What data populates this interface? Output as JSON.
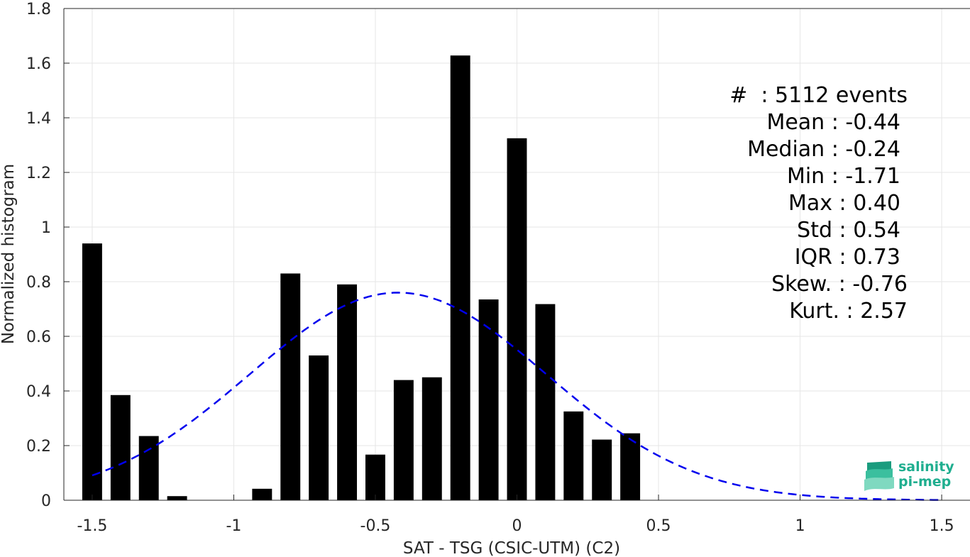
{
  "chart_data": {
    "type": "bar",
    "xlabel": "SAT - TSG (CSIC-UTM) (C2)",
    "ylabel": "Normalized histogram",
    "xlim": [
      -1.6,
      1.6
    ],
    "ylim": [
      0,
      1.8
    ],
    "xticks": [
      "-1.5",
      "-1",
      "-0.5",
      "0",
      "0.5",
      "1",
      "1.5"
    ],
    "xtick_values": [
      -1.5,
      -1,
      -0.5,
      0,
      0.5,
      1,
      1.5
    ],
    "yticks": [
      "0",
      "0.2",
      "0.4",
      "0.6",
      "0.8",
      "1",
      "1.2",
      "1.4",
      "1.6",
      "1.8"
    ],
    "ytick_values": [
      0,
      0.2,
      0.4,
      0.6,
      0.8,
      1,
      1.2,
      1.4,
      1.6,
      1.8
    ],
    "grid": true,
    "bar_width": 0.07,
    "bar_color": "#000000",
    "bars": {
      "x": [
        -1.5,
        -1.4,
        -1.3,
        -1.2,
        -0.9,
        -0.8,
        -0.7,
        -0.6,
        -0.5,
        -0.4,
        -0.3,
        -0.2,
        -0.1,
        0.0,
        0.1,
        0.2,
        0.3,
        0.4
      ],
      "values": [
        0.94,
        0.385,
        0.235,
        0.015,
        0.042,
        0.83,
        0.53,
        0.79,
        0.167,
        0.44,
        0.45,
        1.628,
        0.735,
        1.325,
        0.718,
        0.325,
        0.222,
        0.245
      ]
    },
    "fit": {
      "type": "normal",
      "mean": -0.42,
      "peak": 0.76,
      "std": 0.524,
      "x_range": [
        -1.5,
        1.5
      ],
      "color": "#0000ee",
      "style": "dashed"
    }
  },
  "stats": [
    "#  : 5112 events",
    "Mean : -0.44",
    "Median : -0.24",
    "Min : -1.71",
    "Max : 0.40",
    "Std : 0.54",
    "IQR : 0.73",
    "Skew. : -0.76",
    "Kurt. : 2.57"
  ],
  "logo": {
    "line1": "salinity",
    "line2": "pi-mep"
  }
}
